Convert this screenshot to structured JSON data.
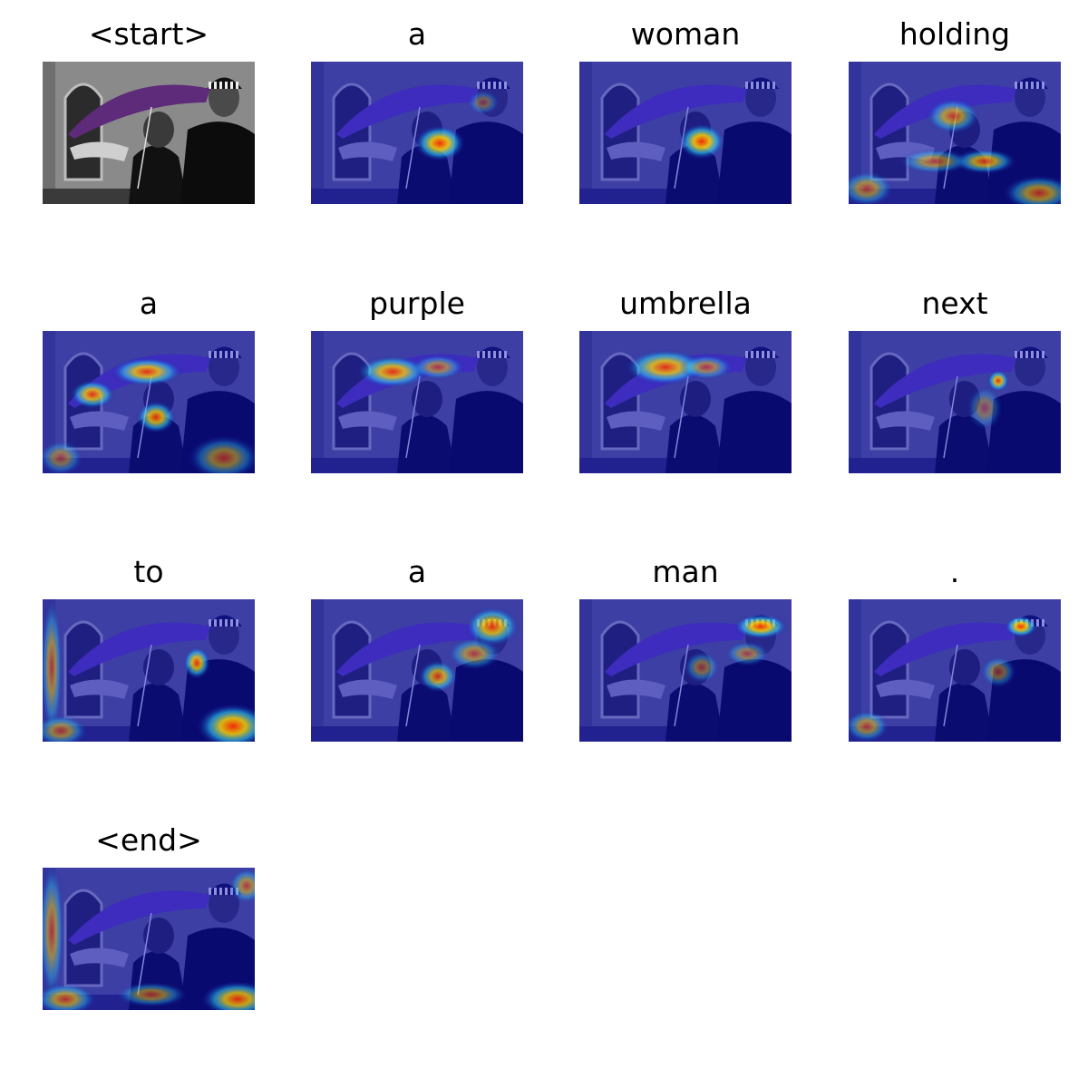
{
  "figure": {
    "tokens": [
      "<start>",
      "a",
      "woman",
      "holding",
      "a",
      "purple",
      "umbrella",
      "next",
      "to",
      "a",
      "man",
      ".",
      "<end>"
    ],
    "colors": {
      "base_dark": "#1a1c6e",
      "umbrella": "#6a3fd6",
      "heat_low": "#0a0aa0",
      "heat_mid": "#2bd3ff",
      "heat_high": "#ff2a00",
      "heat_top": "#ffd400"
    }
  }
}
